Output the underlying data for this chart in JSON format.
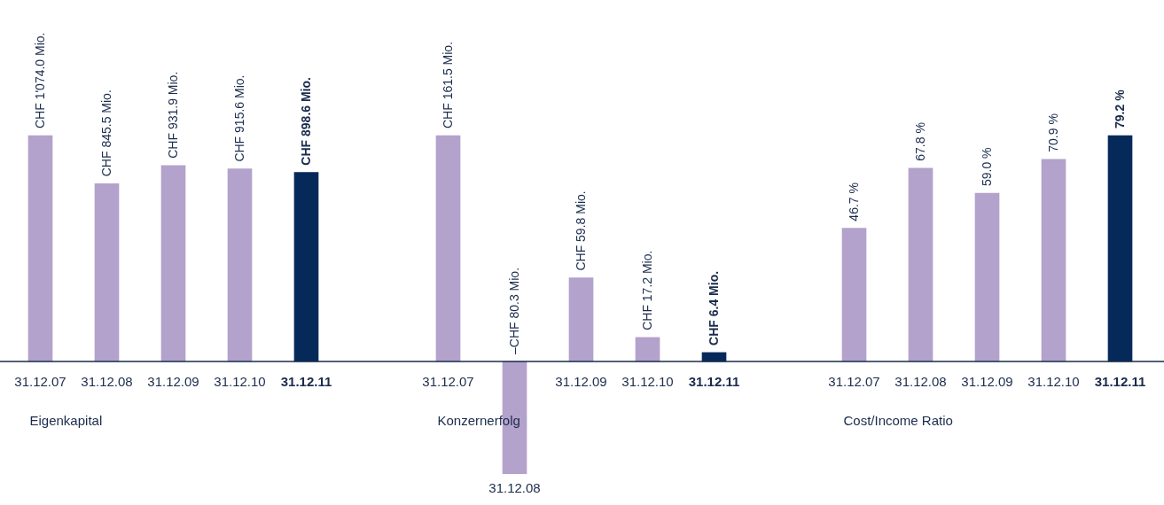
{
  "chart_data": [
    {
      "type": "bar",
      "xlabel": "Eigenkapital",
      "categories": [
        "31.12.07",
        "31.12.08",
        "31.12.09",
        "31.12.10",
        "31.12.11"
      ],
      "values": [
        1074.0,
        845.5,
        931.9,
        915.6,
        898.6
      ],
      "colors": [
        "#b3a2cb",
        "#b3a2cb",
        "#b3a2cb",
        "#b3a2cb",
        "#052a5a"
      ],
      "value_labels": [
        "CHF 1'074.0 Mio.",
        "CHF 845.5 Mio.",
        "CHF 931.9 Mio.",
        "CHF 915.6 Mio.",
        "CHF 898.6 Mio."
      ]
    },
    {
      "type": "bar",
      "xlabel": "Konzernerfolg",
      "categories": [
        "31.12.07",
        "31.12.08",
        "31.12.09",
        "31.12.10",
        "31.12.11"
      ],
      "values": [
        161.5,
        -80.3,
        59.8,
        17.2,
        6.4
      ],
      "colors": [
        "#b3a2cb",
        "#b3a2cb",
        "#b3a2cb",
        "#b3a2cb",
        "#052a5a"
      ],
      "value_labels": [
        "CHF 161.5 Mio.",
        "–CHF 80.3 Mio.",
        "CHF 59.8 Mio.",
        "CHF 17.2 Mio.",
        "CHF 6.4 Mio."
      ]
    },
    {
      "type": "bar",
      "xlabel": "Cost/Income Ratio",
      "categories": [
        "31.12.07",
        "31.12.08",
        "31.12.09",
        "31.12.10",
        "31.12.11"
      ],
      "values": [
        46.7,
        67.8,
        59.0,
        70.9,
        79.2
      ],
      "colors": [
        "#b3a2cb",
        "#b3a2cb",
        "#b3a2cb",
        "#b3a2cb",
        "#052a5a"
      ],
      "value_labels": [
        "46.7 %",
        "67.8 %",
        "59.0 %",
        "70.9 %",
        "79.2 %"
      ]
    }
  ]
}
